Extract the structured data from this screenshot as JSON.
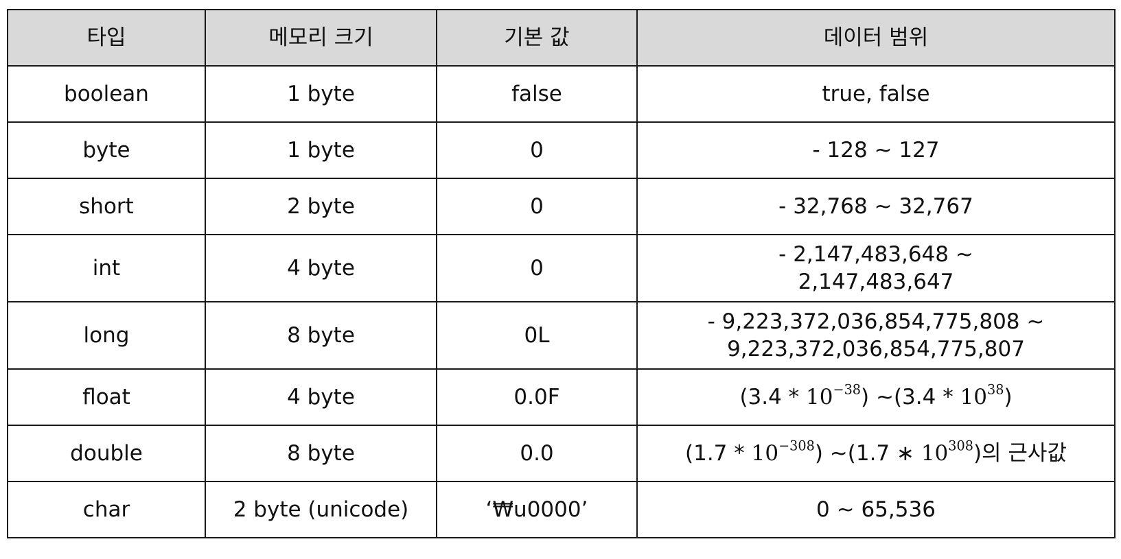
{
  "headers": [
    "타입",
    "메모리 크기",
    "기본 값",
    "데이터 범위"
  ],
  "rows": [
    {
      "type": "boolean",
      "size": "1 byte",
      "default": "false",
      "range": "true, false"
    },
    {
      "type": "byte",
      "size": "1 byte",
      "default": "0",
      "range": "- 128 ~ 127"
    },
    {
      "type": "short",
      "size": "2 byte",
      "default": "0",
      "range": "- 32,768 ~ 32,767"
    },
    {
      "type": "int",
      "size": "4 byte",
      "default": "0",
      "range_line1": "- 2,147,483,648 ~",
      "range_line2": "2,147,483,647"
    },
    {
      "type": "long",
      "size": "8 byte",
      "default": "0L",
      "range_line1": "- 9,223,372,036,854,775,808 ~",
      "range_line2": "9,223,372,036,854,775,807"
    },
    {
      "type": "float",
      "size": "4 byte",
      "default": "0.0F",
      "range_parts": {
        "open_a": "(3.4 * ",
        "base_a": "10",
        "exp_a": "−38",
        "mid": ") ~(3.4 * ",
        "base_b": "10",
        "exp_b": "38",
        "close": ")"
      }
    },
    {
      "type": "double",
      "size": "8 byte",
      "default": "0.0",
      "range_parts": {
        "open_a": "(1.7 * ",
        "base_a": "10",
        "exp_a": "−308",
        "mid": ") ~(1.7 ∗ ",
        "base_b": "10",
        "exp_b": "308",
        "close": ")의 근사값"
      }
    },
    {
      "type": "char",
      "size": "2 byte (unicode)",
      "default": "‘₩u0000’",
      "range": "0 ~ 65,536"
    }
  ]
}
